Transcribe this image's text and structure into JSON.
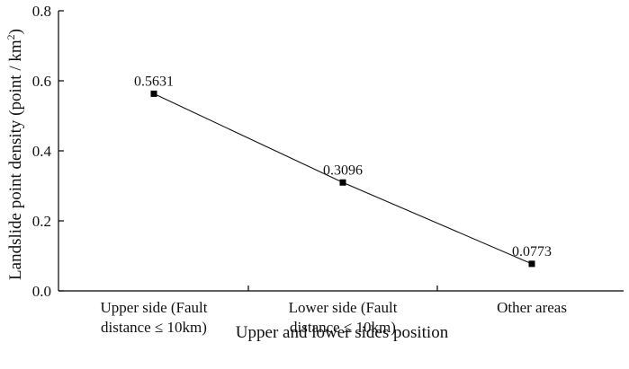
{
  "chart_data": {
    "type": "line",
    "categories": [
      [
        "Upper side (Fault",
        "distance ≤ 10km)"
      ],
      [
        "Lower side (Fault",
        "distance ≤ 10km)"
      ],
      [
        "Other areas"
      ]
    ],
    "series": [
      {
        "values": [
          0.5631,
          0.3096,
          0.0773
        ],
        "data_labels": [
          "0.5631",
          "0.3096",
          "0.0773"
        ]
      }
    ],
    "xlabel": "Upper and lower sides position",
    "ylabel": "Landslide point density (point / km²)",
    "ylabel_parts": {
      "before": "Landslide point density (point / km",
      "sup": "2",
      "after": ")"
    },
    "ylim": [
      0.0,
      0.8
    ],
    "yticks": [
      0.0,
      0.2,
      0.4,
      0.6,
      0.8
    ],
    "ytick_labels": [
      "0.0",
      "0.2",
      "0.4",
      "0.6",
      "0.8"
    ],
    "grid": false,
    "legend": "none",
    "colors": {
      "line": "#111111",
      "marker": "#000000",
      "axis": "#000000",
      "text": "#111111"
    }
  }
}
